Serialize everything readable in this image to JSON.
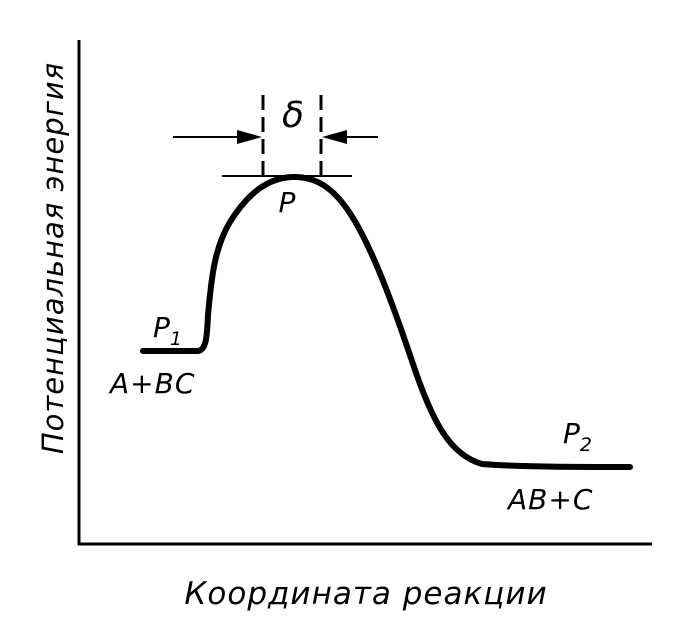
{
  "diagram": {
    "y_axis_label": "Потенциальная энергия",
    "x_axis_label": "Координата реакции",
    "start_state": {
      "point": "P",
      "subscript": "1",
      "species": "A+BC"
    },
    "transition_state": {
      "point": "P",
      "width_symbol": "δ"
    },
    "end_state": {
      "point": "P",
      "subscript": "2",
      "species": "AB+C"
    }
  }
}
